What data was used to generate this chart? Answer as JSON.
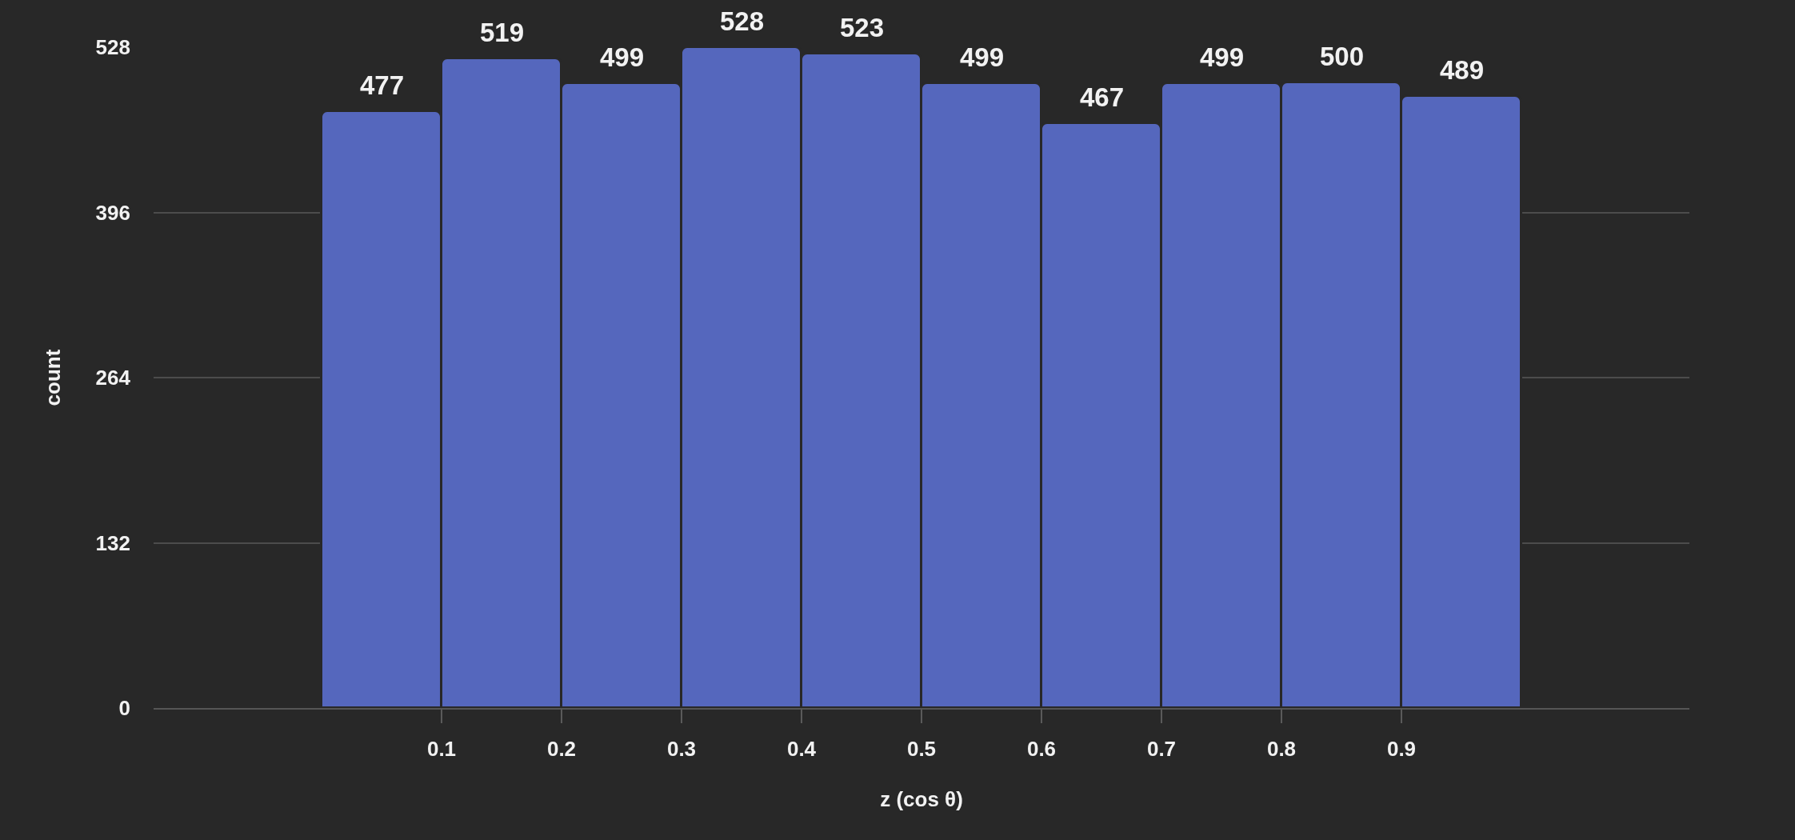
{
  "chart_data": {
    "type": "histogram",
    "xlabel": "z (cos θ)",
    "ylabel": "count",
    "bins": [
      0,
      0.1,
      0.2,
      0.3,
      0.4,
      0.5,
      0.6,
      0.7,
      0.8,
      0.9,
      1.0
    ],
    "values": [
      477,
      519,
      499,
      528,
      523,
      499,
      467,
      499,
      500,
      489
    ],
    "color": "#5567bd",
    "xlim": [
      -0.14,
      1.14
    ],
    "xticks": [
      0.1,
      0.2,
      0.3,
      0.4,
      0.5,
      0.6,
      0.7,
      0.8,
      0.9
    ],
    "ylim": [
      0,
      528
    ],
    "yticks": [
      0,
      132,
      264,
      396,
      528
    ],
    "grid": "y",
    "data_labels": true
  }
}
